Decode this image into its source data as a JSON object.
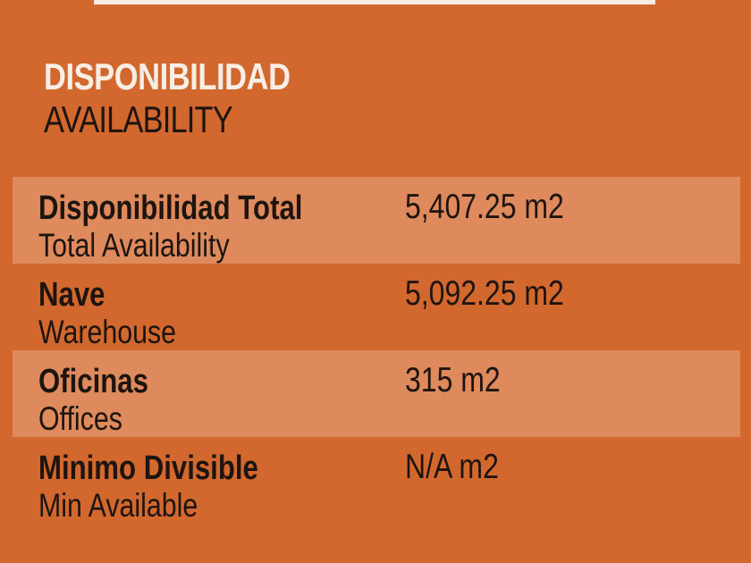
{
  "header": {
    "title": "DISPONIBILIDAD",
    "subtitle": "AVAILABILITY"
  },
  "colors": {
    "background": "#D2682E",
    "band": "#DE8A5C",
    "title": "#F8EEE6",
    "text": "#1E1410"
  },
  "rows": [
    {
      "label": "Disponibilidad Total",
      "sublabel": "Total Availability",
      "value": "5,407.25 m2"
    },
    {
      "label": "Nave",
      "sublabel": "Warehouse",
      "value": "5,092.25 m2"
    },
    {
      "label": "Oficinas",
      "sublabel": "Offices",
      "value": "315 m2"
    },
    {
      "label": "Minimo Divisible",
      "sublabel": "Min Available",
      "value": "N/A m2"
    }
  ]
}
